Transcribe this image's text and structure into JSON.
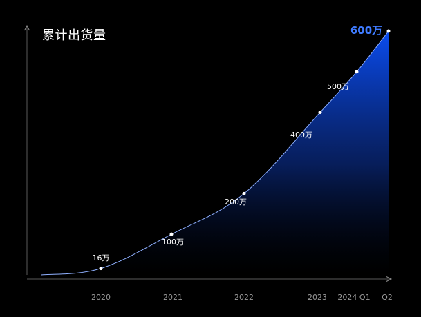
{
  "chart_data": {
    "type": "area",
    "title": "累计出货量",
    "xlabel": "",
    "ylabel": "",
    "x": [
      "2020",
      "2021",
      "2022",
      "2023",
      "2024 Q1",
      "Q2"
    ],
    "values": [
      16,
      100,
      200,
      400,
      500,
      600
    ],
    "unit": "万",
    "data_labels": [
      "16万",
      "100万",
      "200万",
      "400万",
      "500万",
      "600万"
    ],
    "ylim": [
      0,
      600
    ],
    "grid": false,
    "legend": "none",
    "colors": {
      "line": "#8fb0ff",
      "fill_top": "#0a4cf0",
      "fill_bottom": "#000000",
      "highlight_label": "#3f7bff",
      "axis": "#8a8a8a"
    }
  }
}
